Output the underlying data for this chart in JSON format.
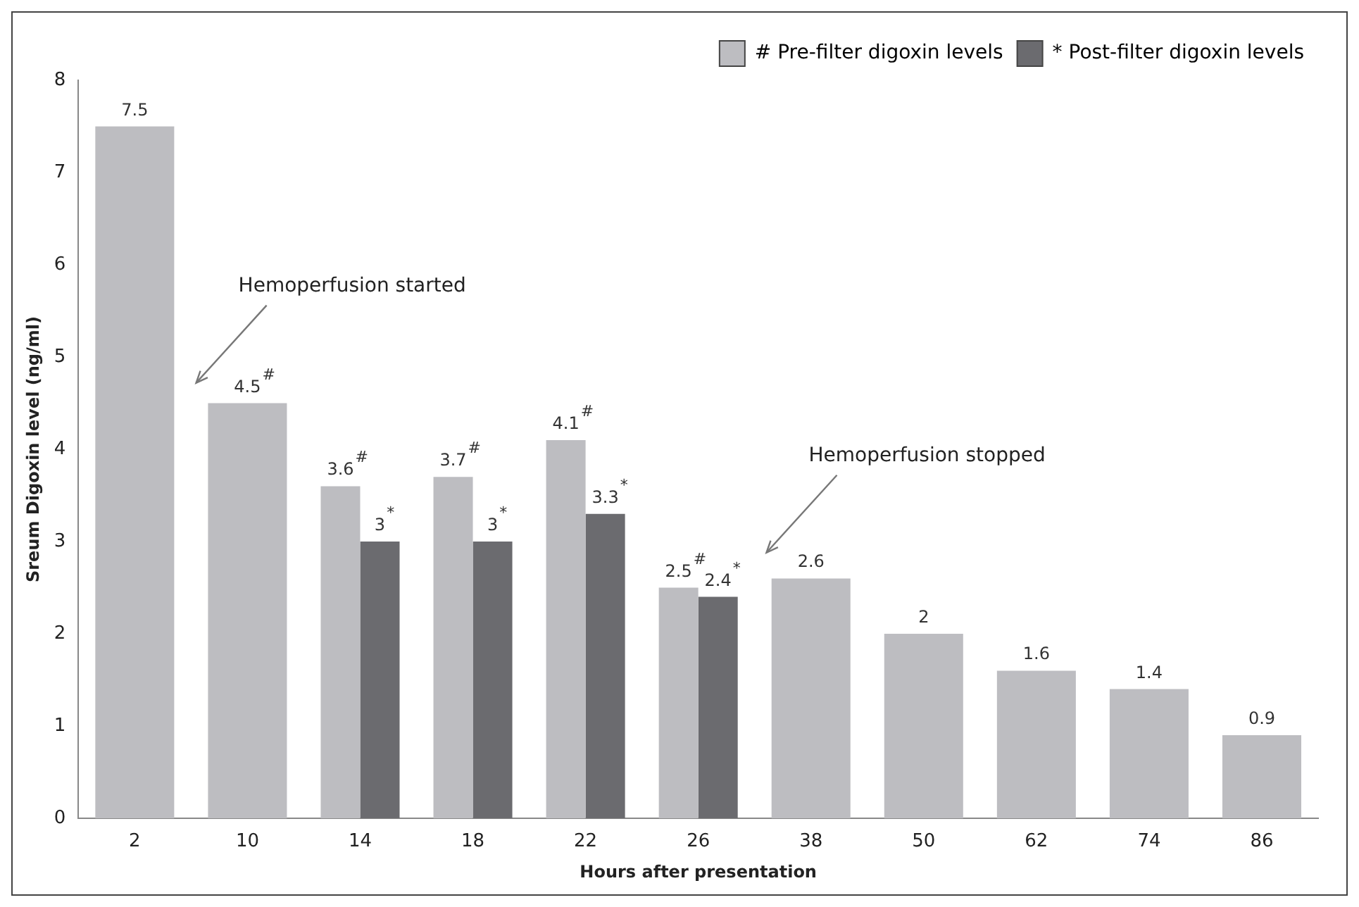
{
  "chart_data": {
    "type": "bar",
    "xlabel": "Hours after presentation",
    "ylabel": "Sreum Digoxin level (ng/ml)",
    "categories": [
      "2",
      "10",
      "14",
      "18",
      "22",
      "26",
      "38",
      "50",
      "62",
      "74",
      "86"
    ],
    "series": [
      {
        "name": "# Pre-filter digoxin levels",
        "color": "#bdbdc1",
        "values": [
          7.5,
          4.5,
          3.6,
          3.7,
          4.1,
          2.5,
          2.6,
          2,
          1.6,
          1.4,
          0.9
        ],
        "value_labels": [
          "7.5",
          "4.5$^{#}$",
          "3.6$^{#}$",
          "3.7$^{#}$",
          "4.1$^{#}$",
          "2.5$^{#}$",
          "2.6",
          "2",
          "1.6",
          "1.4",
          "0.9"
        ]
      },
      {
        "name": "* Post-filter digoxin levels",
        "color": "#6b6b6f",
        "values": [
          null,
          null,
          3,
          3,
          3.3,
          2.4,
          null,
          null,
          null,
          null,
          null
        ],
        "value_labels": [
          null,
          null,
          "3$^{*}$",
          "3$^{*}$",
          "3.3$^{*}$",
          "2.4$^{*}$",
          null,
          null,
          null,
          null,
          null
        ]
      }
    ],
    "ylim": [
      0,
      8
    ],
    "yticks": [
      0,
      1,
      2,
      3,
      4,
      5,
      6,
      7,
      8
    ],
    "grid": false,
    "legend": "top right",
    "annotations": [
      "Hemoperfusion started",
      "Hemoperfusion stopped"
    ]
  }
}
